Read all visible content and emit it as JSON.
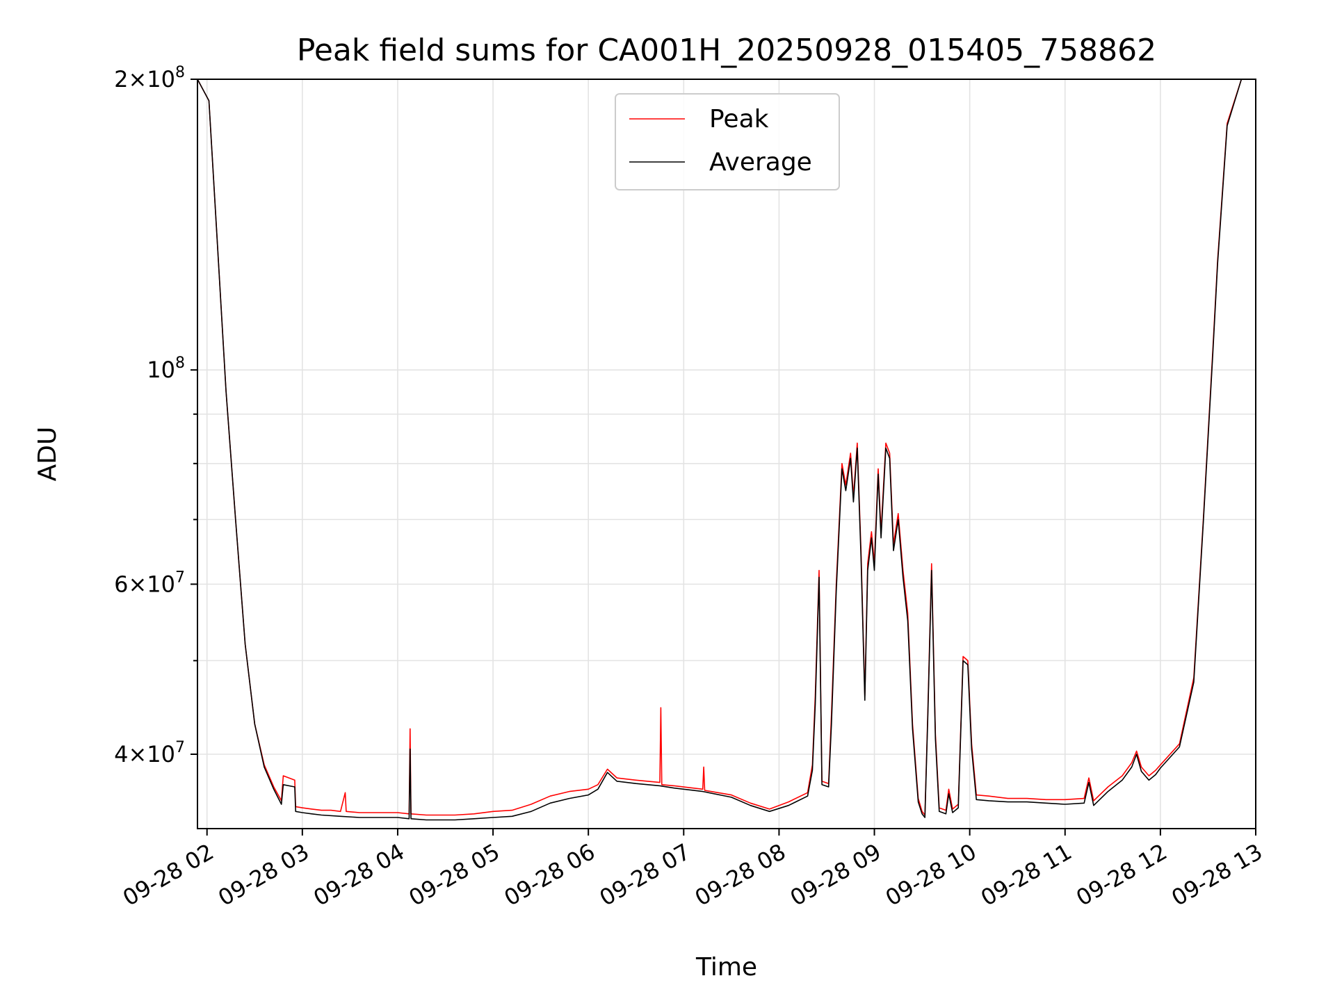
{
  "chart_data": {
    "type": "line",
    "title": "Peak field sums for CA001H_20250928_015405_758862",
    "xlabel": "Time",
    "ylabel": "ADU",
    "y_scale": "log",
    "ylim": [
      33500000,
      200000000
    ],
    "xlim_hours": [
      1.9,
      13.0
    ],
    "grid": true,
    "legend_position": "upper center",
    "x_ticks": [
      {
        "h": 2,
        "label": "09-28 02"
      },
      {
        "h": 3,
        "label": "09-28 03"
      },
      {
        "h": 4,
        "label": "09-28 04"
      },
      {
        "h": 5,
        "label": "09-28 05"
      },
      {
        "h": 6,
        "label": "09-28 06"
      },
      {
        "h": 7,
        "label": "09-28 07"
      },
      {
        "h": 8,
        "label": "09-28 08"
      },
      {
        "h": 9,
        "label": "09-28 09"
      },
      {
        "h": 10,
        "label": "09-28 10"
      },
      {
        "h": 11,
        "label": "09-28 11"
      },
      {
        "h": 12,
        "label": "09-28 12"
      },
      {
        "h": 13,
        "label": "09-28 13"
      }
    ],
    "y_ticks": [
      {
        "value": 40000000,
        "mantissa": "4",
        "exp": "7"
      },
      {
        "value": 60000000,
        "mantissa": "6",
        "exp": "7"
      },
      {
        "value": 100000000,
        "mantissa": "",
        "exp": "8"
      },
      {
        "value": 200000000,
        "mantissa": "2",
        "exp": "8"
      }
    ],
    "y_minor_ticks": [
      50000000,
      70000000,
      80000000,
      90000000
    ],
    "series": [
      {
        "name": "Peak",
        "color": "#ff0000",
        "points": [
          [
            1.9,
            200000000
          ],
          [
            2.02,
            190000000
          ],
          [
            2.1,
            140000000
          ],
          [
            2.2,
            95000000
          ],
          [
            2.3,
            70000000
          ],
          [
            2.4,
            52000000
          ],
          [
            2.5,
            43000000
          ],
          [
            2.6,
            39000000
          ],
          [
            2.7,
            37000000
          ],
          [
            2.78,
            35800000
          ],
          [
            2.8,
            38000000
          ],
          [
            2.92,
            37600000
          ],
          [
            2.93,
            35300000
          ],
          [
            3.0,
            35200000
          ],
          [
            3.1,
            35100000
          ],
          [
            3.2,
            35000000
          ],
          [
            3.3,
            35000000
          ],
          [
            3.4,
            34900000
          ],
          [
            3.45,
            36500000
          ],
          [
            3.46,
            34900000
          ],
          [
            3.6,
            34800000
          ],
          [
            3.8,
            34800000
          ],
          [
            4.0,
            34800000
          ],
          [
            4.12,
            34700000
          ],
          [
            4.13,
            42500000
          ],
          [
            4.14,
            34700000
          ],
          [
            4.3,
            34600000
          ],
          [
            4.6,
            34600000
          ],
          [
            4.8,
            34700000
          ],
          [
            5.0,
            34900000
          ],
          [
            5.2,
            35000000
          ],
          [
            5.4,
            35500000
          ],
          [
            5.6,
            36200000
          ],
          [
            5.8,
            36600000
          ],
          [
            6.0,
            36800000
          ],
          [
            6.1,
            37200000
          ],
          [
            6.2,
            38600000
          ],
          [
            6.3,
            37800000
          ],
          [
            6.5,
            37600000
          ],
          [
            6.75,
            37400000
          ],
          [
            6.76,
            44700000
          ],
          [
            6.77,
            37200000
          ],
          [
            6.9,
            37100000
          ],
          [
            7.2,
            36800000
          ],
          [
            7.21,
            38800000
          ],
          [
            7.22,
            36700000
          ],
          [
            7.5,
            36300000
          ],
          [
            7.7,
            35600000
          ],
          [
            7.9,
            35100000
          ],
          [
            8.1,
            35700000
          ],
          [
            8.3,
            36500000
          ],
          [
            8.35,
            39000000
          ],
          [
            8.38,
            46000000
          ],
          [
            8.42,
            62000000
          ],
          [
            8.45,
            37500000
          ],
          [
            8.52,
            37300000
          ],
          [
            8.55,
            44000000
          ],
          [
            8.6,
            60000000
          ],
          [
            8.66,
            80000000
          ],
          [
            8.7,
            76000000
          ],
          [
            8.75,
            82000000
          ],
          [
            8.78,
            74000000
          ],
          [
            8.82,
            84000000
          ],
          [
            8.86,
            65000000
          ],
          [
            8.9,
            46000000
          ],
          [
            8.93,
            63000000
          ],
          [
            8.97,
            68000000
          ],
          [
            9.0,
            63000000
          ],
          [
            9.04,
            79000000
          ],
          [
            9.07,
            68000000
          ],
          [
            9.12,
            84000000
          ],
          [
            9.16,
            82000000
          ],
          [
            9.2,
            66000000
          ],
          [
            9.25,
            71000000
          ],
          [
            9.3,
            62000000
          ],
          [
            9.35,
            56000000
          ],
          [
            9.4,
            43000000
          ],
          [
            9.46,
            36000000
          ],
          [
            9.5,
            34900000
          ],
          [
            9.53,
            34600000
          ],
          [
            9.56,
            44000000
          ],
          [
            9.6,
            63000000
          ],
          [
            9.64,
            42000000
          ],
          [
            9.68,
            35200000
          ],
          [
            9.75,
            35000000
          ],
          [
            9.78,
            36800000
          ],
          [
            9.82,
            35100000
          ],
          [
            9.88,
            35500000
          ],
          [
            9.93,
            50500000
          ],
          [
            9.98,
            50000000
          ],
          [
            10.02,
            41000000
          ],
          [
            10.07,
            36300000
          ],
          [
            10.2,
            36200000
          ],
          [
            10.4,
            36000000
          ],
          [
            10.6,
            36000000
          ],
          [
            10.8,
            35900000
          ],
          [
            11.0,
            35900000
          ],
          [
            11.2,
            36000000
          ],
          [
            11.25,
            37800000
          ],
          [
            11.3,
            35800000
          ],
          [
            11.45,
            37000000
          ],
          [
            11.6,
            38000000
          ],
          [
            11.7,
            39200000
          ],
          [
            11.75,
            40300000
          ],
          [
            11.8,
            38800000
          ],
          [
            11.88,
            38000000
          ],
          [
            11.95,
            38500000
          ],
          [
            12.0,
            39000000
          ],
          [
            12.2,
            41000000
          ],
          [
            12.35,
            48000000
          ],
          [
            12.45,
            70000000
          ],
          [
            12.55,
            105000000
          ],
          [
            12.6,
            130000000
          ],
          [
            12.7,
            180000000
          ],
          [
            12.85,
            200000000
          ],
          [
            13.0,
            200000000
          ]
        ]
      },
      {
        "name": "Average",
        "color": "#000000",
        "points": [
          [
            1.9,
            200000000
          ],
          [
            2.02,
            190000000
          ],
          [
            2.1,
            140000000
          ],
          [
            2.2,
            95000000
          ],
          [
            2.3,
            70000000
          ],
          [
            2.4,
            52000000
          ],
          [
            2.5,
            43000000
          ],
          [
            2.6,
            38800000
          ],
          [
            2.7,
            36800000
          ],
          [
            2.78,
            35500000
          ],
          [
            2.8,
            37200000
          ],
          [
            2.92,
            37000000
          ],
          [
            2.93,
            34900000
          ],
          [
            3.0,
            34800000
          ],
          [
            3.1,
            34700000
          ],
          [
            3.2,
            34600000
          ],
          [
            3.4,
            34500000
          ],
          [
            3.6,
            34400000
          ],
          [
            3.8,
            34400000
          ],
          [
            4.0,
            34400000
          ],
          [
            4.12,
            34300000
          ],
          [
            4.13,
            40500000
          ],
          [
            4.14,
            34300000
          ],
          [
            4.3,
            34200000
          ],
          [
            4.6,
            34200000
          ],
          [
            4.8,
            34300000
          ],
          [
            5.0,
            34400000
          ],
          [
            5.2,
            34500000
          ],
          [
            5.4,
            34900000
          ],
          [
            5.6,
            35600000
          ],
          [
            5.8,
            36000000
          ],
          [
            6.0,
            36300000
          ],
          [
            6.1,
            36800000
          ],
          [
            6.2,
            38300000
          ],
          [
            6.3,
            37500000
          ],
          [
            6.5,
            37300000
          ],
          [
            6.75,
            37100000
          ],
          [
            6.9,
            36900000
          ],
          [
            7.2,
            36600000
          ],
          [
            7.5,
            36100000
          ],
          [
            7.7,
            35400000
          ],
          [
            7.9,
            34900000
          ],
          [
            8.1,
            35400000
          ],
          [
            8.3,
            36200000
          ],
          [
            8.35,
            38500000
          ],
          [
            8.38,
            45000000
          ],
          [
            8.42,
            61000000
          ],
          [
            8.45,
            37200000
          ],
          [
            8.52,
            37000000
          ],
          [
            8.55,
            43000000
          ],
          [
            8.6,
            59000000
          ],
          [
            8.66,
            79000000
          ],
          [
            8.7,
            75000000
          ],
          [
            8.75,
            81000000
          ],
          [
            8.78,
            73000000
          ],
          [
            8.82,
            83000000
          ],
          [
            8.86,
            64000000
          ],
          [
            8.9,
            45500000
          ],
          [
            8.93,
            62000000
          ],
          [
            8.97,
            67000000
          ],
          [
            9.0,
            62000000
          ],
          [
            9.04,
            78000000
          ],
          [
            9.07,
            67000000
          ],
          [
            9.12,
            83000000
          ],
          [
            9.16,
            81000000
          ],
          [
            9.2,
            65000000
          ],
          [
            9.25,
            70000000
          ],
          [
            9.3,
            61000000
          ],
          [
            9.35,
            55000000
          ],
          [
            9.4,
            42500000
          ],
          [
            9.46,
            35700000
          ],
          [
            9.5,
            34700000
          ],
          [
            9.53,
            34400000
          ],
          [
            9.56,
            43500000
          ],
          [
            9.6,
            62000000
          ],
          [
            9.64,
            41500000
          ],
          [
            9.68,
            34900000
          ],
          [
            9.75,
            34700000
          ],
          [
            9.78,
            36400000
          ],
          [
            9.82,
            34800000
          ],
          [
            9.88,
            35200000
          ],
          [
            9.93,
            50000000
          ],
          [
            9.98,
            49500000
          ],
          [
            10.02,
            40500000
          ],
          [
            10.07,
            35900000
          ],
          [
            10.2,
            35800000
          ],
          [
            10.4,
            35700000
          ],
          [
            10.6,
            35700000
          ],
          [
            10.8,
            35600000
          ],
          [
            11.0,
            35500000
          ],
          [
            11.2,
            35600000
          ],
          [
            11.25,
            37400000
          ],
          [
            11.3,
            35400000
          ],
          [
            11.45,
            36600000
          ],
          [
            11.6,
            37600000
          ],
          [
            11.7,
            38800000
          ],
          [
            11.75,
            40000000
          ],
          [
            11.8,
            38400000
          ],
          [
            11.88,
            37600000
          ],
          [
            11.95,
            38100000
          ],
          [
            12.0,
            38700000
          ],
          [
            12.2,
            40700000
          ],
          [
            12.35,
            47500000
          ],
          [
            12.45,
            69500000
          ],
          [
            12.55,
            104000000
          ],
          [
            12.6,
            129000000
          ],
          [
            12.7,
            179000000
          ],
          [
            12.85,
            200000000
          ],
          [
            13.0,
            200000000
          ]
        ]
      }
    ]
  }
}
